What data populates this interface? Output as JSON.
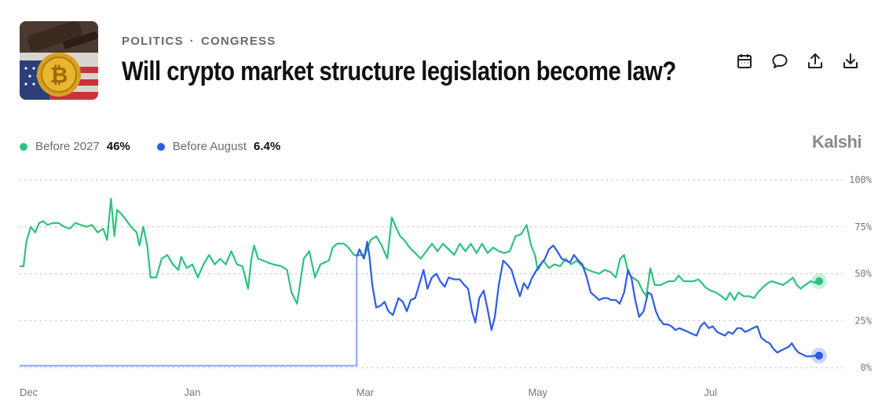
{
  "header": {
    "category": "POLITICS",
    "subcategory": "CONGRESS",
    "title": "Will crypto market structure legislation become law?"
  },
  "actions": [
    {
      "icon": "calendar-icon"
    },
    {
      "icon": "comment-icon"
    },
    {
      "icon": "share-icon"
    },
    {
      "icon": "download-icon"
    }
  ],
  "legend": [
    {
      "name": "Before 2027",
      "value": "46%",
      "color": "#2ec27e"
    },
    {
      "name": "Before August",
      "value": "6.4%",
      "color": "#2d5be3"
    }
  ],
  "brand": "Kalshi",
  "chart_data": {
    "type": "line",
    "ylim": [
      0,
      100
    ],
    "yticks": [
      {
        "value": 100,
        "label": "100%"
      },
      {
        "value": 75,
        "label": "75%"
      },
      {
        "value": 50,
        "label": "50%"
      },
      {
        "value": 25,
        "label": "25%"
      },
      {
        "value": 0,
        "label": "0%"
      }
    ],
    "xticks": [
      {
        "x": 0,
        "label": "Dec"
      },
      {
        "x": 31,
        "label": "Jan"
      },
      {
        "x": 62,
        "label": "Mar"
      },
      {
        "x": 93,
        "label": "May"
      },
      {
        "x": 124,
        "label": "Jul"
      }
    ],
    "grid": true,
    "series": [
      {
        "name": "Before 2027",
        "color": "#2ec27e",
        "points": [
          [
            0,
            54
          ],
          [
            0.7,
            54
          ],
          [
            1.2,
            67
          ],
          [
            2.0,
            75
          ],
          [
            2.8,
            72
          ],
          [
            3.5,
            77
          ],
          [
            4.2,
            78
          ],
          [
            5,
            76
          ],
          [
            6,
            77
          ],
          [
            7,
            77
          ],
          [
            8,
            75
          ],
          [
            9,
            74
          ],
          [
            10,
            77
          ],
          [
            11,
            76
          ],
          [
            12,
            75
          ],
          [
            13,
            76
          ],
          [
            14,
            72
          ],
          [
            15,
            74
          ],
          [
            15.7,
            68
          ],
          [
            16.4,
            90
          ],
          [
            17,
            70
          ],
          [
            17.5,
            84
          ],
          [
            18.2,
            82
          ],
          [
            19,
            79
          ],
          [
            20,
            75
          ],
          [
            21,
            72
          ],
          [
            21.5,
            65
          ],
          [
            22.2,
            75
          ],
          [
            22.9,
            65
          ],
          [
            23.5,
            48
          ],
          [
            24.5,
            48
          ],
          [
            25.5,
            58
          ],
          [
            26.5,
            60
          ],
          [
            27.5,
            55
          ],
          [
            28.5,
            52
          ],
          [
            29,
            59
          ],
          [
            30,
            53
          ],
          [
            31,
            55
          ],
          [
            32,
            48
          ],
          [
            33,
            55
          ],
          [
            34,
            60
          ],
          [
            35,
            55
          ],
          [
            36,
            58
          ],
          [
            37,
            55
          ],
          [
            38,
            62
          ],
          [
            39,
            55
          ],
          [
            40,
            54
          ],
          [
            41,
            42
          ],
          [
            41.6,
            58
          ],
          [
            42.1,
            65
          ],
          [
            42.8,
            58
          ],
          [
            44.5,
            56
          ],
          [
            45.5,
            55
          ],
          [
            47,
            54
          ],
          [
            48,
            52
          ],
          [
            48.8,
            40
          ],
          [
            49.8,
            34
          ],
          [
            51,
            58
          ],
          [
            52,
            62
          ],
          [
            53,
            48
          ],
          [
            54,
            55
          ],
          [
            55.5,
            57
          ],
          [
            56.2,
            64
          ],
          [
            57,
            66
          ],
          [
            58.2,
            66
          ],
          [
            59,
            64
          ],
          [
            60,
            60
          ],
          [
            61,
            60
          ],
          [
            62,
            60
          ],
          [
            63,
            68
          ],
          [
            64,
            70
          ],
          [
            65,
            65
          ],
          [
            66,
            58
          ],
          [
            66.8,
            80
          ],
          [
            67.5,
            75
          ],
          [
            68.3,
            70
          ],
          [
            69,
            68
          ],
          [
            70,
            64
          ],
          [
            71,
            61
          ],
          [
            72,
            58
          ],
          [
            73,
            62
          ],
          [
            74,
            66
          ],
          [
            75,
            62
          ],
          [
            76,
            66
          ],
          [
            77,
            63
          ],
          [
            78,
            60
          ],
          [
            79,
            66
          ],
          [
            80,
            62
          ],
          [
            81,
            66
          ],
          [
            82,
            61
          ],
          [
            83,
            66
          ],
          [
            84,
            61
          ],
          [
            85,
            64
          ],
          [
            86,
            62
          ],
          [
            87,
            61
          ],
          [
            88,
            62
          ],
          [
            89,
            70
          ],
          [
            90,
            71
          ],
          [
            91,
            76
          ],
          [
            91.8,
            65
          ],
          [
            92.5,
            60
          ],
          [
            93,
            52
          ],
          [
            94,
            57
          ],
          [
            95,
            53
          ],
          [
            96,
            55
          ],
          [
            97,
            54
          ],
          [
            98,
            58
          ],
          [
            99,
            55
          ],
          [
            100,
            57
          ],
          [
            101,
            54
          ],
          [
            102,
            52
          ],
          [
            103,
            51
          ],
          [
            104,
            50
          ],
          [
            105,
            52
          ],
          [
            106,
            51
          ],
          [
            107,
            48
          ],
          [
            107.8,
            58
          ],
          [
            108.5,
            60
          ],
          [
            109.3,
            50
          ],
          [
            110,
            48
          ],
          [
            111,
            46
          ],
          [
            111.8,
            41
          ],
          [
            112.5,
            38
          ],
          [
            113.2,
            53
          ],
          [
            114,
            44
          ],
          [
            115,
            44
          ],
          [
            116.5,
            46
          ],
          [
            117.5,
            46
          ],
          [
            118.3,
            49
          ],
          [
            119.2,
            46
          ],
          [
            120,
            46
          ],
          [
            121,
            46
          ],
          [
            121.8,
            47
          ],
          [
            122.5,
            45
          ],
          [
            123,
            43
          ],
          [
            124,
            41
          ],
          [
            125,
            40
          ],
          [
            126,
            38
          ],
          [
            126.8,
            36
          ],
          [
            127.5,
            40
          ],
          [
            128.3,
            36
          ],
          [
            129,
            40
          ],
          [
            130,
            38
          ],
          [
            131,
            38
          ],
          [
            131.8,
            37
          ],
          [
            132.5,
            40
          ],
          [
            133.5,
            43
          ],
          [
            134.3,
            45
          ],
          [
            135,
            46
          ],
          [
            136,
            45
          ],
          [
            137,
            44
          ],
          [
            138,
            46
          ],
          [
            138.8,
            48
          ],
          [
            139.5,
            44
          ],
          [
            140.2,
            42
          ],
          [
            141,
            44
          ],
          [
            142,
            46
          ],
          [
            143,
            45
          ],
          [
            143.5,
            46
          ]
        ]
      },
      {
        "name": "Before August",
        "color": "#2d5be3",
        "points": [
          [
            0,
            1
          ],
          [
            60.5,
            1
          ],
          [
            60.5,
            59
          ],
          [
            61,
            63
          ],
          [
            61.8,
            58
          ],
          [
            62.4,
            67
          ],
          [
            62.8,
            59
          ],
          [
            63.3,
            44
          ],
          [
            64,
            32
          ],
          [
            64.8,
            33
          ],
          [
            65.5,
            35
          ],
          [
            66.2,
            30
          ],
          [
            67,
            28
          ],
          [
            68,
            37
          ],
          [
            68.8,
            35
          ],
          [
            69.5,
            30
          ],
          [
            70.2,
            36
          ],
          [
            71,
            37
          ],
          [
            71.8,
            45
          ],
          [
            72.5,
            52
          ],
          [
            73.2,
            42
          ],
          [
            74,
            48
          ],
          [
            74.8,
            50
          ],
          [
            75.5,
            46
          ],
          [
            76.3,
            43
          ],
          [
            77,
            48
          ],
          [
            78,
            47
          ],
          [
            79,
            47
          ],
          [
            79.8,
            44
          ],
          [
            80.5,
            42
          ],
          [
            81.2,
            30
          ],
          [
            81.8,
            24
          ],
          [
            82.5,
            37
          ],
          [
            83.3,
            41
          ],
          [
            84,
            31
          ],
          [
            84.7,
            20
          ],
          [
            85.3,
            27
          ],
          [
            86,
            44
          ],
          [
            86.8,
            57
          ],
          [
            87.5,
            55
          ],
          [
            88.3,
            52
          ],
          [
            89,
            45
          ],
          [
            89.8,
            38
          ],
          [
            90.5,
            45
          ],
          [
            91.2,
            42
          ],
          [
            92,
            48
          ],
          [
            92.8,
            52
          ],
          [
            93.5,
            55
          ],
          [
            94.3,
            58
          ],
          [
            95,
            63
          ],
          [
            95.8,
            65
          ],
          [
            96.5,
            62
          ],
          [
            97.3,
            58
          ],
          [
            98,
            57
          ],
          [
            98.8,
            56
          ],
          [
            99.5,
            60
          ],
          [
            100.3,
            57
          ],
          [
            101,
            55
          ],
          [
            101.8,
            48
          ],
          [
            102.5,
            40
          ],
          [
            103.3,
            38
          ],
          [
            104,
            36
          ],
          [
            104.8,
            37
          ],
          [
            105.5,
            37
          ],
          [
            106.2,
            36
          ],
          [
            107,
            36
          ],
          [
            107.7,
            34
          ],
          [
            108.5,
            40
          ],
          [
            109.2,
            52
          ],
          [
            109.8,
            48
          ],
          [
            110.5,
            36
          ],
          [
            111.2,
            27
          ],
          [
            112,
            30
          ],
          [
            112.8,
            40
          ],
          [
            113.4,
            39
          ],
          [
            114.2,
            30
          ],
          [
            114.8,
            26
          ],
          [
            115.6,
            23
          ],
          [
            116.3,
            23
          ],
          [
            117,
            22
          ],
          [
            117.7,
            20
          ],
          [
            118.4,
            21
          ],
          [
            119.2,
            20
          ],
          [
            120,
            19
          ],
          [
            120.7,
            18
          ],
          [
            121.5,
            17
          ],
          [
            122.2,
            22
          ],
          [
            122.9,
            24
          ],
          [
            123.7,
            21
          ],
          [
            124.4,
            22
          ],
          [
            125.2,
            19
          ],
          [
            125.9,
            18
          ],
          [
            126.6,
            17
          ],
          [
            127.2,
            19
          ],
          [
            128,
            18
          ],
          [
            128.8,
            21
          ],
          [
            129.5,
            21
          ],
          [
            130.2,
            19
          ],
          [
            131,
            20
          ],
          [
            131.6,
            21
          ],
          [
            132.4,
            22
          ],
          [
            133.1,
            16
          ],
          [
            133.9,
            14
          ],
          [
            134.6,
            13
          ],
          [
            135.3,
            10
          ],
          [
            136,
            8
          ],
          [
            136.6,
            9
          ],
          [
            137.3,
            10
          ],
          [
            138,
            11
          ],
          [
            138.6,
            13
          ],
          [
            139.2,
            10
          ],
          [
            139.8,
            8
          ],
          [
            140.5,
            7
          ],
          [
            141.2,
            6
          ],
          [
            142,
            6
          ],
          [
            143,
            6.4
          ],
          [
            143.5,
            6.4
          ]
        ]
      }
    ]
  }
}
